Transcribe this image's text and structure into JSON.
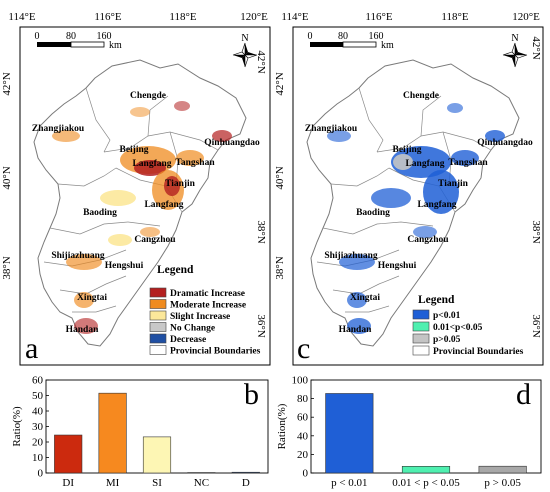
{
  "coord_labels": {
    "longitudes": [
      "114°E",
      "116°E",
      "118°E",
      "120°E"
    ],
    "latitudes": [
      "42°N",
      "40°N",
      "38°N",
      "36°N"
    ]
  },
  "scale_bar": {
    "ticks": [
      "0",
      "80",
      "160"
    ],
    "unit": "km"
  },
  "north_arrow": {
    "label": "N"
  },
  "cities": [
    "Chengde",
    "Zhangjiakou",
    "Beijing",
    "Qinhuangdao",
    "Langfang",
    "Tangshan",
    "Tianjin",
    "Baoding",
    "Cangzhou",
    "Shijiazhuang",
    "Hengshui",
    "Xingtai",
    "Handan"
  ],
  "map_a": {
    "panel_letter": "a",
    "legend_title": "Legend",
    "legend_items": [
      {
        "label": "Dramatic Increase",
        "color": "#b32020"
      },
      {
        "label": "Moderate Increase",
        "color": "#ef8b1f"
      },
      {
        "label": "Slight Increase",
        "color": "#fce89a"
      },
      {
        "label": "No Change",
        "color": "#c8c8c8"
      },
      {
        "label": "Decrease",
        "color": "#1f4fa3"
      },
      {
        "label": "Provincial Boundaries",
        "color": "#ffffff"
      }
    ]
  },
  "map_c": {
    "panel_letter": "c",
    "legend_title": "Legend",
    "legend_items": [
      {
        "label": "p<0.01",
        "color": "#1f5fd6"
      },
      {
        "label": "0.01<p<0.05",
        "color": "#4ff0b0"
      },
      {
        "label": "p>0.05",
        "color": "#c4c4c4"
      },
      {
        "label": "Provincial Boundaries",
        "color": "#ffffff"
      }
    ]
  },
  "chart_data": [
    {
      "type": "bar",
      "panel_letter": "b",
      "categories": [
        "DI",
        "MI",
        "SI",
        "NC",
        "D"
      ],
      "values": [
        24.5,
        51.5,
        23.3,
        0.3,
        0.5
      ],
      "colors": [
        "#cc2a0e",
        "#f6891f",
        "#fdf6b4",
        "#c8c8c8",
        "#1f4fa3"
      ],
      "ylabel": "Ratio(%)",
      "ylim": [
        0,
        60
      ],
      "yticks": [
        "0",
        "10",
        "20",
        "30",
        "40",
        "50",
        "60"
      ],
      "grid": false
    },
    {
      "type": "bar",
      "panel_letter": "d",
      "categories": [
        "p < 0.01",
        "0.01 < p < 0.05",
        "p > 0.05"
      ],
      "values": [
        85.5,
        7.2,
        7.3
      ],
      "colors": [
        "#1f5fd6",
        "#4ff0b0",
        "#a8a8a8"
      ],
      "ylabel": "Ration(%)",
      "ylim": [
        0,
        100
      ],
      "yticks": [
        "0",
        "20",
        "40",
        "60",
        "80",
        "100"
      ],
      "grid": false
    }
  ]
}
